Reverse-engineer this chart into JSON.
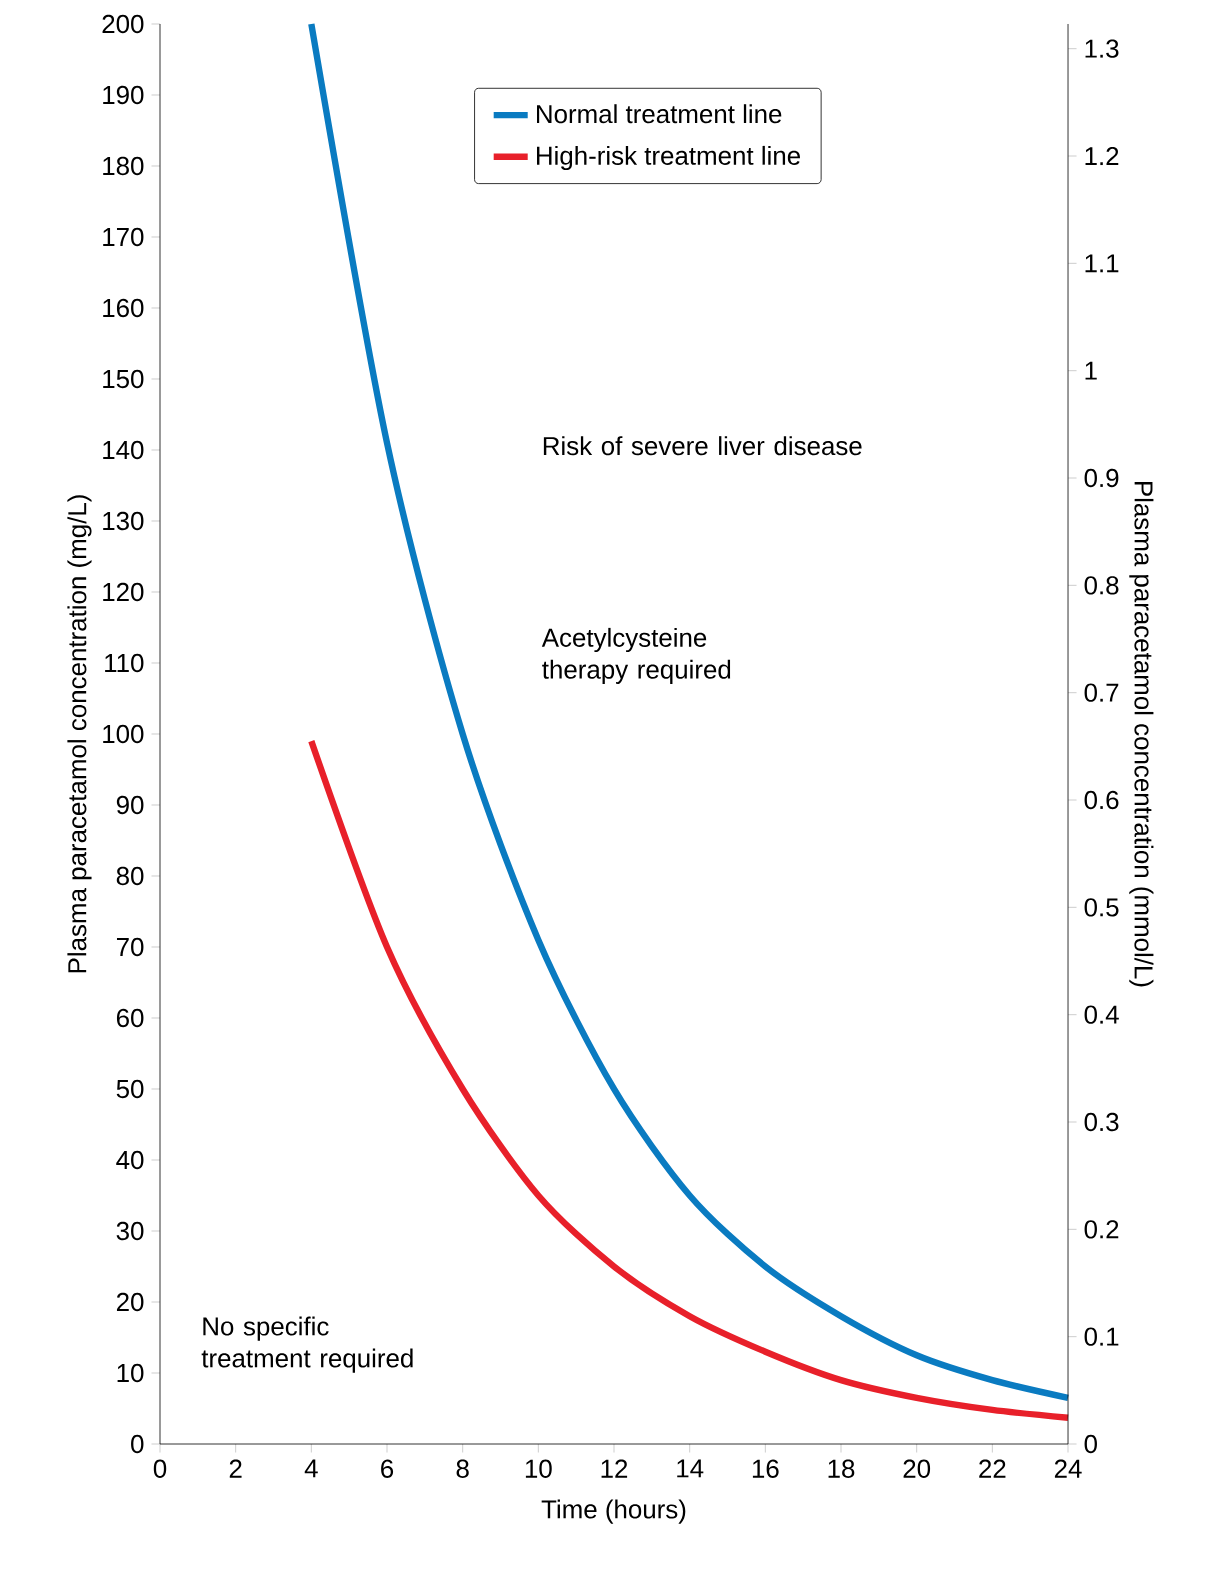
{
  "chart_data": {
    "type": "line",
    "xlabel": "Time (hours)",
    "ylabel": "Plasma paracetamol concentration (mg/L)",
    "y2label": "Plasma paracetamol concentration (mmol/L)",
    "series": [
      {
        "name": "Normal treatment line",
        "color": "#0a7bc1",
        "x": [
          4,
          6,
          8,
          10,
          12,
          14,
          16,
          18,
          20,
          22,
          24
        ],
        "values": [
          200,
          141,
          100,
          71,
          50,
          35,
          25,
          18,
          12.5,
          9,
          6.5
        ]
      },
      {
        "name": "High-risk treatment line",
        "color": "#e8202a",
        "x": [
          4,
          6,
          8,
          10,
          12,
          14,
          16,
          18,
          20,
          22,
          24
        ],
        "values": [
          99,
          70,
          50,
          35,
          25,
          18,
          13,
          9,
          6.5,
          4.8,
          3.7
        ]
      }
    ],
    "xlim": [
      0,
      24
    ],
    "xticks": [
      0,
      2,
      4,
      6,
      8,
      10,
      12,
      14,
      16,
      18,
      20,
      22,
      24
    ],
    "ylim": [
      0,
      200
    ],
    "yticks": [
      0,
      10,
      20,
      30,
      40,
      50,
      60,
      70,
      80,
      90,
      100,
      110,
      120,
      130,
      140,
      150,
      160,
      170,
      180,
      190,
      200
    ],
    "y2lim": [
      0,
      1.323
    ],
    "y2ticks": [
      0,
      0.1,
      0.2,
      0.3,
      0.4,
      0.5,
      0.6,
      0.7,
      0.8,
      0.9,
      1,
      1.1,
      1.2,
      1.3
    ],
    "annotations": [
      "Risk of severe liver disease",
      "Acetylcysteine therapy required",
      "No specific treatment required"
    ],
    "legend": "top right",
    "grid": false
  }
}
